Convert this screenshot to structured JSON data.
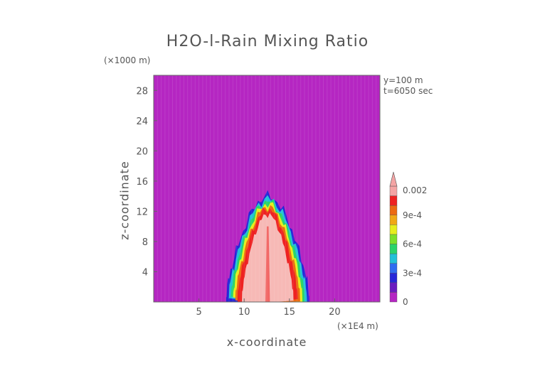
{
  "chart_data": {
    "type": "heatmap",
    "title": "H2O-l-Rain Mixing Ratio",
    "xlabel": "x-coordinate",
    "ylabel": "z-coordinate",
    "x_units": "(×1E4 m)",
    "y_units": "(×1000 m)",
    "x_ticks": [
      5,
      10,
      15,
      20
    ],
    "y_ticks": [
      4,
      8,
      12,
      16,
      20,
      24,
      28
    ],
    "xlim": [
      0,
      25
    ],
    "ylim": [
      0,
      30
    ],
    "annotations": [
      "y=100 m",
      "t=6050 sec"
    ],
    "colorbar": {
      "labels": [
        "0",
        "3e-4",
        "6e-4",
        "9e-4",
        "0.002"
      ],
      "levels": [
        0,
        0.0001,
        0.0002,
        0.0003,
        0.0004,
        0.0005,
        0.0006,
        0.0007,
        0.0008,
        0.0009,
        0.001,
        0.002
      ],
      "colors": [
        "#b526c2",
        "#6a1cc0",
        "#2626d8",
        "#2f6cf0",
        "#22c0d8",
        "#2ad36a",
        "#7ce02a",
        "#e6ee1e",
        "#f0a816",
        "#ec6a12",
        "#ee2222",
        "#f4a4a4"
      ]
    },
    "background_color": "#b526c2",
    "plume": {
      "x_range": [
        8,
        17.2
      ],
      "z_top": 14,
      "core_color": "#f7b9b6",
      "ring_colors": [
        "#ee2222",
        "#ec6a12",
        "#e6ee1e",
        "#2ad36a",
        "#22c0d8",
        "#2626d8"
      ]
    }
  }
}
